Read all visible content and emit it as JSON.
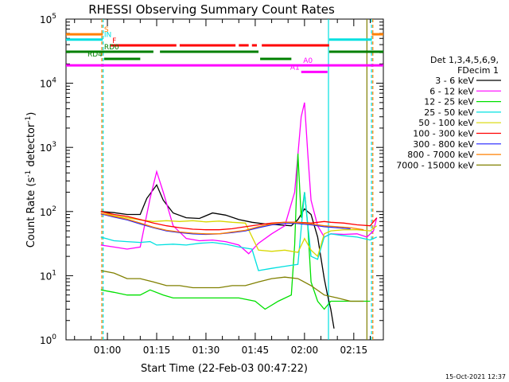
{
  "chart_data": {
    "type": "line",
    "title": "RHESSI Observing Summary Count Rates",
    "xlabel_prefix": "Start Time",
    "xlabel_paren": "(22-Feb-03 00:47:22)",
    "ylabel_main": "Count Rate (s",
    "ylabel_sup1": "-1",
    "ylabel_mid": " detector",
    "ylabel_sup2": "-1",
    "ylabel_end": ")",
    "yscale": "log",
    "ylim_exp": [
      0,
      5
    ],
    "y_tick_base": "10",
    "y_ticks": [
      {
        "exp": 0,
        "label": "0"
      },
      {
        "exp": 1,
        "label": "1"
      },
      {
        "exp": 2,
        "label": "2"
      },
      {
        "exp": 3,
        "label": "3"
      },
      {
        "exp": 4,
        "label": "4"
      },
      {
        "exp": 5,
        "label": "5"
      }
    ],
    "xlim_min": [
      47.4,
      144
    ],
    "x_ticks": [
      {
        "min": 60,
        "label": "01:00"
      },
      {
        "min": 75,
        "label": "01:15"
      },
      {
        "min": 90,
        "label": "01:30"
      },
      {
        "min": 105,
        "label": "01:45"
      },
      {
        "min": 120,
        "label": "02:00"
      },
      {
        "min": 135,
        "label": "02:15"
      }
    ],
    "legend": {
      "header": [
        "Det 1,3,4,5,6,9,",
        "FDecim 1"
      ],
      "entries": [
        {
          "label": "3 - 6 keV",
          "color": "#000000"
        },
        {
          "label": "6 - 12 keV",
          "color": "#ff00ff"
        },
        {
          "label": "12 - 25 keV",
          "color": "#00e000"
        },
        {
          "label": "25 - 50 keV",
          "color": "#00e0e0"
        },
        {
          "label": "50 - 100 keV",
          "color": "#d8d800"
        },
        {
          "label": "100 - 300 keV",
          "color": "#ff0000"
        },
        {
          "label": "300 - 800 keV",
          "color": "#2020ff"
        },
        {
          "label": "800 - 7000 keV",
          "color": "#ff8000"
        },
        {
          "label": "7000 - 15000 keV",
          "color": "#808000"
        }
      ]
    },
    "timestamp": "15-Oct-2021 12:37",
    "series": [
      {
        "name": "3 - 6 keV",
        "color": "#000000",
        "points": [
          [
            58,
            100
          ],
          [
            62,
            96
          ],
          [
            66,
            90
          ],
          [
            70,
            90
          ],
          [
            72,
            160
          ],
          [
            75,
            260
          ],
          [
            77,
            150
          ],
          [
            80,
            95
          ],
          [
            84,
            80
          ],
          [
            88,
            78
          ],
          [
            92,
            95
          ],
          [
            96,
            88
          ],
          [
            100,
            75
          ],
          [
            104,
            68
          ],
          [
            108,
            64
          ],
          [
            112,
            62
          ],
          [
            116,
            60
          ],
          [
            118,
            75
          ],
          [
            120,
            110
          ],
          [
            122,
            90
          ],
          [
            124,
            40
          ],
          [
            126,
            9
          ],
          [
            127,
            5
          ],
          [
            128,
            3
          ],
          [
            129,
            1.5
          ]
        ]
      },
      {
        "name": "6 - 12 keV",
        "color": "#ff00ff",
        "points": [
          [
            58,
            30
          ],
          [
            62,
            28
          ],
          [
            66,
            26
          ],
          [
            70,
            28
          ],
          [
            73,
            160
          ],
          [
            75,
            420
          ],
          [
            77,
            200
          ],
          [
            80,
            60
          ],
          [
            84,
            38
          ],
          [
            88,
            35
          ],
          [
            92,
            36
          ],
          [
            96,
            34
          ],
          [
            100,
            30
          ],
          [
            103,
            22
          ],
          [
            106,
            32
          ],
          [
            110,
            45
          ],
          [
            114,
            60
          ],
          [
            117,
            200
          ],
          [
            119,
            3000
          ],
          [
            120,
            5000
          ],
          [
            121,
            800
          ],
          [
            122,
            150
          ],
          [
            124,
            60
          ],
          [
            126,
            40
          ],
          [
            128,
            45
          ],
          [
            132,
            44
          ],
          [
            136,
            45
          ],
          [
            139,
            40
          ],
          [
            141,
            50
          ],
          [
            142,
            80
          ]
        ]
      },
      {
        "name": "12 - 25 keV",
        "color": "#00e000",
        "points": [
          [
            58,
            6
          ],
          [
            62,
            5.5
          ],
          [
            66,
            5
          ],
          [
            70,
            5
          ],
          [
            73,
            6
          ],
          [
            77,
            5
          ],
          [
            80,
            4.5
          ],
          [
            90,
            4.5
          ],
          [
            100,
            4.5
          ],
          [
            105,
            4
          ],
          [
            108,
            3
          ],
          [
            112,
            4
          ],
          [
            116,
            5
          ],
          [
            117,
            30
          ],
          [
            118,
            800
          ],
          [
            119,
            80
          ],
          [
            120,
            200
          ],
          [
            121,
            60
          ],
          [
            122,
            8
          ],
          [
            124,
            4
          ],
          [
            126,
            3
          ],
          [
            128,
            4
          ],
          [
            132,
            4
          ],
          [
            140,
            4
          ]
        ]
      },
      {
        "name": "25 - 50 keV",
        "color": "#00e0e0",
        "points": [
          [
            58,
            40
          ],
          [
            62,
            35
          ],
          [
            66,
            34
          ],
          [
            70,
            33
          ],
          [
            73,
            34
          ],
          [
            75,
            30
          ],
          [
            80,
            31
          ],
          [
            84,
            30
          ],
          [
            88,
            32
          ],
          [
            92,
            33
          ],
          [
            96,
            31
          ],
          [
            100,
            28
          ],
          [
            104,
            26
          ],
          [
            106,
            12
          ],
          [
            110,
            13
          ],
          [
            114,
            14
          ],
          [
            118,
            15
          ],
          [
            120,
            200
          ],
          [
            122,
            20
          ],
          [
            124,
            18
          ],
          [
            126,
            40
          ],
          [
            128,
            45
          ],
          [
            132,
            42
          ],
          [
            136,
            40
          ],
          [
            140,
            36
          ],
          [
            142,
            40
          ]
        ]
      },
      {
        "name": "50 - 100 keV",
        "color": "#d8d800",
        "points": [
          [
            58,
            100
          ],
          [
            62,
            86
          ],
          [
            66,
            80
          ],
          [
            70,
            74
          ],
          [
            74,
            70
          ],
          [
            78,
            72
          ],
          [
            82,
            70
          ],
          [
            86,
            72
          ],
          [
            90,
            69
          ],
          [
            94,
            71
          ],
          [
            98,
            68
          ],
          [
            102,
            66
          ],
          [
            106,
            25
          ],
          [
            110,
            24
          ],
          [
            114,
            25
          ],
          [
            118,
            23
          ],
          [
            120,
            38
          ],
          [
            122,
            25
          ],
          [
            124,
            20
          ],
          [
            126,
            45
          ],
          [
            128,
            50
          ],
          [
            132,
            52
          ],
          [
            136,
            52
          ],
          [
            140,
            50
          ],
          [
            142,
            60
          ]
        ]
      },
      {
        "name": "100 - 300 keV",
        "color": "#ff0000",
        "points": [
          [
            58,
            100
          ],
          [
            62,
            90
          ],
          [
            66,
            84
          ],
          [
            70,
            75
          ],
          [
            74,
            66
          ],
          [
            78,
            60
          ],
          [
            82,
            56
          ],
          [
            86,
            53
          ],
          [
            90,
            52
          ],
          [
            94,
            52
          ],
          [
            98,
            54
          ],
          [
            102,
            58
          ],
          [
            106,
            62
          ],
          [
            110,
            66
          ],
          [
            114,
            68
          ],
          [
            118,
            68
          ],
          [
            122,
            66
          ],
          [
            126,
            70
          ],
          [
            128,
            68
          ],
          [
            132,
            66
          ],
          [
            136,
            62
          ],
          [
            140,
            60
          ],
          [
            142,
            80
          ]
        ]
      },
      {
        "name": "300 - 800 keV",
        "color": "#2020ff",
        "points": [
          [
            58,
            92
          ],
          [
            62,
            82
          ],
          [
            66,
            74
          ],
          [
            70,
            64
          ],
          [
            74,
            56
          ],
          [
            78,
            50
          ],
          [
            82,
            47
          ],
          [
            86,
            45
          ],
          [
            90,
            44
          ],
          [
            94,
            45
          ],
          [
            98,
            47
          ],
          [
            102,
            50
          ],
          [
            106,
            56
          ],
          [
            110,
            62
          ],
          [
            114,
            66
          ],
          [
            118,
            65
          ],
          [
            122,
            62
          ],
          [
            126,
            58
          ],
          [
            130,
            56
          ],
          [
            134,
            54
          ]
        ]
      },
      {
        "name": "800 - 7000 keV",
        "color": "#ff8000",
        "points": [
          [
            58,
            94
          ],
          [
            62,
            84
          ],
          [
            66,
            76
          ],
          [
            70,
            66
          ],
          [
            74,
            57
          ],
          [
            78,
            51
          ],
          [
            82,
            48
          ],
          [
            86,
            46
          ],
          [
            90,
            45
          ],
          [
            94,
            45
          ],
          [
            98,
            48
          ],
          [
            102,
            51
          ],
          [
            106,
            58
          ],
          [
            110,
            64
          ],
          [
            114,
            68
          ],
          [
            118,
            67
          ],
          [
            122,
            64
          ],
          [
            126,
            60
          ],
          [
            130,
            58
          ],
          [
            134,
            56
          ],
          [
            138,
            52
          ]
        ]
      },
      {
        "name": "7000 - 15000 keV",
        "color": "#808000",
        "points": [
          [
            58,
            12
          ],
          [
            62,
            11
          ],
          [
            66,
            9
          ],
          [
            70,
            9
          ],
          [
            74,
            8
          ],
          [
            78,
            7
          ],
          [
            82,
            7
          ],
          [
            86,
            6.5
          ],
          [
            90,
            6.5
          ],
          [
            94,
            6.5
          ],
          [
            98,
            7
          ],
          [
            102,
            7
          ],
          [
            106,
            8
          ],
          [
            110,
            9
          ],
          [
            114,
            9.5
          ],
          [
            118,
            9
          ],
          [
            122,
            7
          ],
          [
            126,
            5
          ],
          [
            130,
            4.5
          ],
          [
            134,
            4
          ],
          [
            138,
            4
          ]
        ]
      }
    ],
    "flag_bars": [
      {
        "label": "S",
        "color": "#ff8000",
        "y": 58000,
        "segments": [
          [
            47.4,
            58.6
          ],
          [
            140.5,
            144
          ]
        ]
      },
      {
        "label": "IN",
        "color": "#00e0e0",
        "y": 48000,
        "segments": [
          [
            47.4,
            58.6
          ],
          [
            127.5,
            140.5
          ]
        ]
      },
      {
        "label": "F",
        "color": "#ff0000",
        "y": 39000,
        "segments": [
          [
            61,
            81
          ],
          [
            82,
            99
          ],
          [
            100,
            103
          ],
          [
            104,
            105.5
          ],
          [
            107,
            127.5
          ]
        ]
      },
      {
        "label": "RD0",
        "color": "#008000",
        "y": 31000,
        "segments": [
          [
            47.4,
            74
          ],
          [
            76,
            106
          ],
          [
            127.5,
            144
          ]
        ]
      },
      {
        "label": "RD4",
        "color": "#008000",
        "y": 24000,
        "segments": [
          [
            59,
            70
          ],
          [
            106.5,
            116
          ]
        ]
      },
      {
        "label": "A0",
        "color": "#ff00ff",
        "y": 19000,
        "segments": [
          [
            47.4,
            144
          ]
        ]
      },
      {
        "label": "A1",
        "color": "#ff00ff",
        "y": 15000,
        "segments": [
          [
            119,
            127
          ]
        ]
      }
    ],
    "vlines": [
      {
        "min": 58.3,
        "color": "#ff8000",
        "dash": true
      },
      {
        "min": 58.7,
        "color": "#00e0e0",
        "dash": true
      },
      {
        "min": 127.3,
        "color": "#00e0e0",
        "dash": false
      },
      {
        "min": 139.0,
        "color": "#808000",
        "dash": false
      },
      {
        "min": 140.4,
        "color": "#00e0e0",
        "dash": true
      },
      {
        "min": 140.8,
        "color": "#ff8000",
        "dash": true
      }
    ]
  }
}
